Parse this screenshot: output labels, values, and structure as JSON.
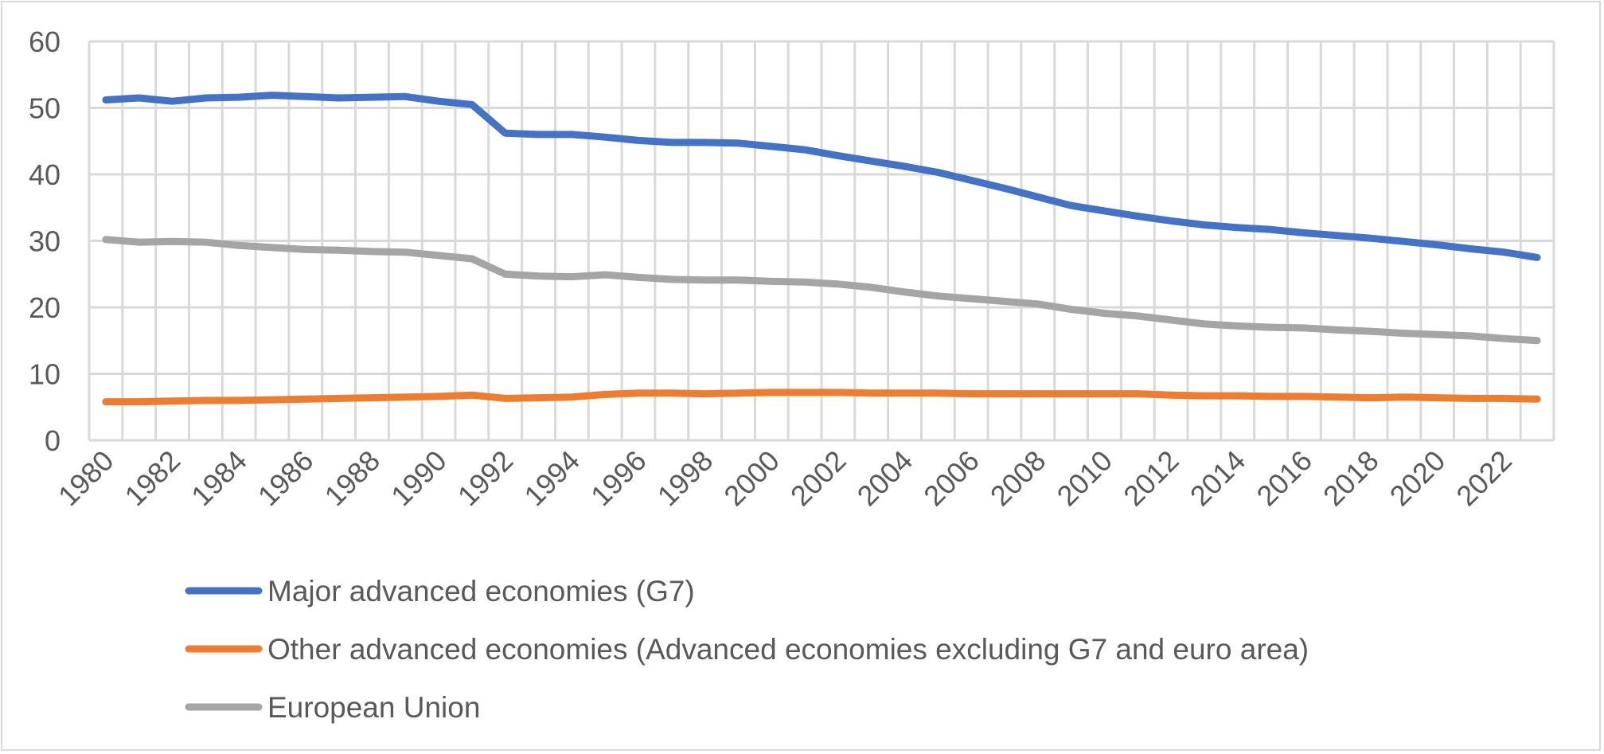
{
  "chart_data": {
    "type": "line",
    "title": "",
    "xlabel": "",
    "ylabel": "",
    "ylim": [
      0,
      60
    ],
    "yticks": [
      0,
      10,
      20,
      30,
      40,
      50,
      60
    ],
    "grid": true,
    "legend_position": "bottom",
    "x": [
      1980,
      1981,
      1982,
      1983,
      1984,
      1985,
      1986,
      1987,
      1988,
      1989,
      1990,
      1991,
      1992,
      1993,
      1994,
      1995,
      1996,
      1997,
      1998,
      1999,
      2000,
      2001,
      2002,
      2003,
      2004,
      2005,
      2006,
      2007,
      2008,
      2009,
      2010,
      2011,
      2012,
      2013,
      2014,
      2015,
      2016,
      2017,
      2018,
      2019,
      2020,
      2021,
      2022,
      2023
    ],
    "xtick_labels": [
      "1980",
      "1982",
      "1984",
      "1986",
      "1988",
      "1990",
      "1992",
      "1994",
      "1996",
      "1998",
      "2000",
      "2002",
      "2004",
      "2006",
      "2008",
      "2010",
      "2012",
      "2014",
      "2016",
      "2018",
      "2020",
      "2022"
    ],
    "series": [
      {
        "name": "Major advanced economies (G7)",
        "color": "#4472c4",
        "values": [
          51.2,
          51.5,
          51.0,
          51.5,
          51.6,
          51.9,
          51.7,
          51.5,
          51.6,
          51.7,
          51.0,
          50.5,
          46.2,
          46.0,
          46.0,
          45.6,
          45.1,
          44.8,
          44.8,
          44.7,
          44.2,
          43.7,
          42.8,
          42.0,
          41.2,
          40.3,
          39.1,
          37.9,
          36.6,
          35.3,
          34.5,
          33.7,
          33.0,
          32.4,
          32.0,
          31.7,
          31.2,
          30.8,
          30.4,
          29.9,
          29.4,
          28.8,
          28.3,
          27.5
        ]
      },
      {
        "name": "Other advanced economies (Advanced economies excluding G7 and euro area)",
        "color": "#ed7d31",
        "values": [
          5.8,
          5.8,
          5.9,
          6.0,
          6.0,
          6.1,
          6.2,
          6.3,
          6.4,
          6.5,
          6.6,
          6.8,
          6.3,
          6.4,
          6.5,
          6.9,
          7.1,
          7.1,
          7.0,
          7.1,
          7.2,
          7.2,
          7.2,
          7.1,
          7.1,
          7.1,
          7.0,
          7.0,
          7.0,
          7.0,
          7.0,
          7.0,
          6.8,
          6.7,
          6.7,
          6.6,
          6.6,
          6.5,
          6.4,
          6.5,
          6.4,
          6.3,
          6.3,
          6.2
        ]
      },
      {
        "name": "European Union",
        "color": "#a5a5a5",
        "values": [
          30.2,
          29.8,
          29.9,
          29.8,
          29.3,
          29.0,
          28.7,
          28.6,
          28.4,
          28.3,
          27.8,
          27.3,
          25.0,
          24.7,
          24.6,
          24.9,
          24.5,
          24.2,
          24.1,
          24.1,
          23.9,
          23.8,
          23.5,
          23.0,
          22.3,
          21.7,
          21.3,
          20.9,
          20.5,
          19.7,
          19.1,
          18.7,
          18.1,
          17.5,
          17.2,
          17.0,
          16.9,
          16.6,
          16.4,
          16.1,
          15.9,
          15.7,
          15.3,
          15.0
        ]
      }
    ]
  }
}
